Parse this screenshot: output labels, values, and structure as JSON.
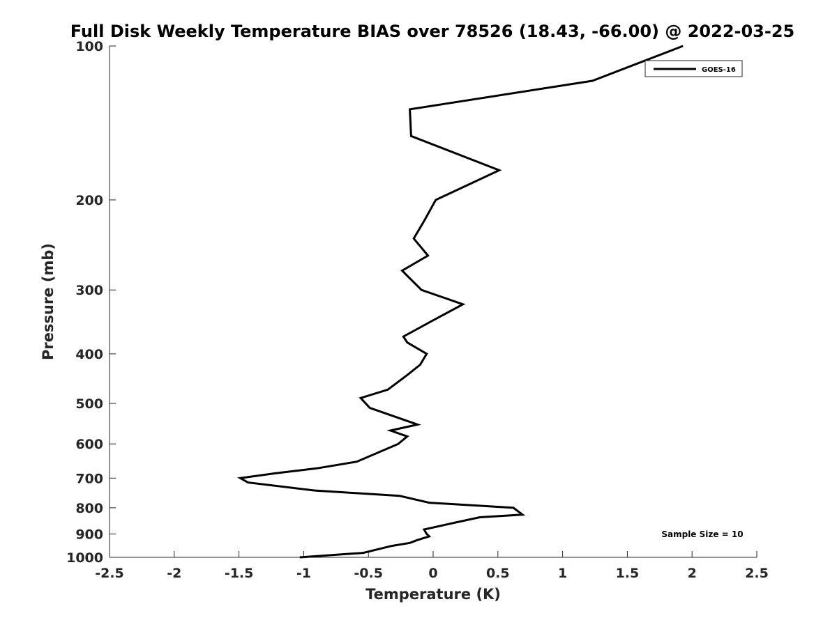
{
  "chart_data": {
    "type": "line",
    "title": "Full Disk Weekly Temperature BIAS over 78526 (18.43, -66.00) @ 2022-03-25",
    "xlabel": "Temperature (K)",
    "ylabel": "Pressure (mb)",
    "xlim": [
      -2.5,
      2.5
    ],
    "ylim": [
      100,
      1000
    ],
    "yscale": "log",
    "yreversed": true,
    "grid": false,
    "xticks": [
      "-2.5",
      "-2",
      "-1.5",
      "-1",
      "-0.5",
      "0",
      "0.5",
      "1",
      "1.5",
      "2",
      "2.5"
    ],
    "yticks": [
      "100",
      "200",
      "300",
      "400",
      "500",
      "600",
      "700",
      "800",
      "900",
      "1000"
    ],
    "legend_position": "top-right",
    "series": [
      {
        "name": "GOES-16",
        "color": "#000000",
        "points": [
          [
            1.93,
            100
          ],
          [
            1.23,
            117
          ],
          [
            -0.18,
            133
          ],
          [
            -0.17,
            150
          ],
          [
            0.51,
            175
          ],
          [
            0.02,
            200
          ],
          [
            -0.07,
            220
          ],
          [
            -0.15,
            238
          ],
          [
            -0.04,
            257
          ],
          [
            -0.24,
            275
          ],
          [
            -0.09,
            300
          ],
          [
            0.23,
            320
          ],
          [
            -0.01,
            345
          ],
          [
            -0.23,
            370
          ],
          [
            -0.2,
            380
          ],
          [
            -0.05,
            400
          ],
          [
            -0.1,
            420
          ],
          [
            -0.2,
            440
          ],
          [
            -0.35,
            470
          ],
          [
            -0.56,
            488
          ],
          [
            -0.49,
            510
          ],
          [
            -0.12,
            550
          ],
          [
            -0.33,
            565
          ],
          [
            -0.2,
            580
          ],
          [
            -0.27,
            600
          ],
          [
            -0.59,
            650
          ],
          [
            -0.9,
            670
          ],
          [
            -1.22,
            685
          ],
          [
            -1.49,
            700
          ],
          [
            -1.43,
            714
          ],
          [
            -0.92,
            740
          ],
          [
            -0.26,
            758
          ],
          [
            -0.03,
            782
          ],
          [
            0.62,
            800
          ],
          [
            0.69,
            825
          ],
          [
            0.36,
            835
          ],
          [
            0.17,
            855
          ],
          [
            -0.07,
            882
          ],
          [
            -0.05,
            900
          ],
          [
            -0.03,
            910
          ],
          [
            -0.12,
            925
          ],
          [
            -0.18,
            937
          ],
          [
            -0.32,
            950
          ],
          [
            -0.54,
            980
          ],
          [
            -1.03,
            1000
          ]
        ]
      }
    ],
    "annotation": "Sample Size = 10"
  }
}
